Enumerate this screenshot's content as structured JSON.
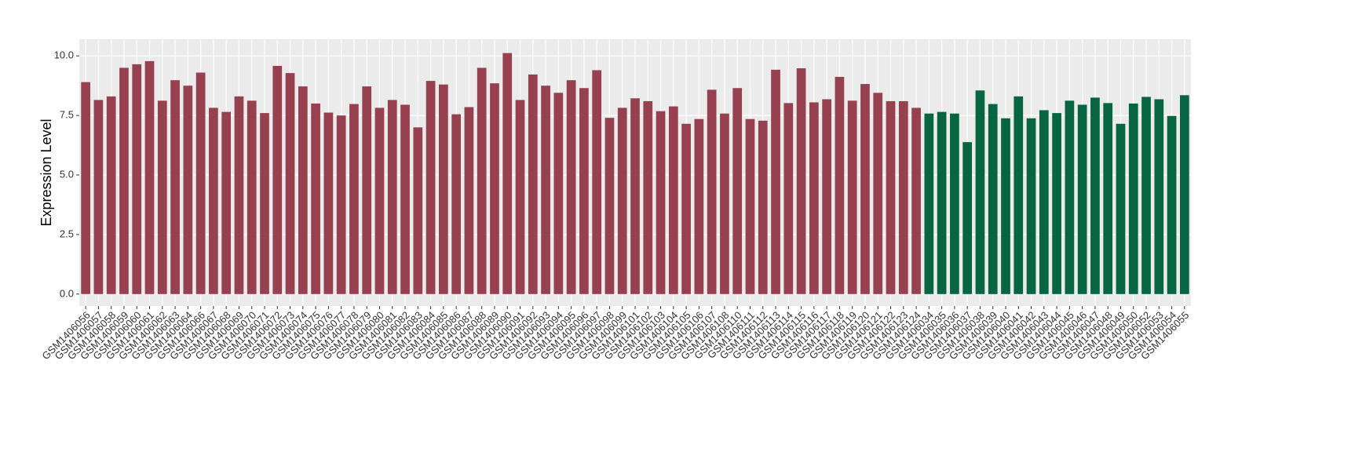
{
  "chart_data": {
    "type": "bar",
    "y_label": "Expression Level",
    "categories": [
      "GSM1406056",
      "GSM1406057",
      "GSM1406058",
      "GSM1406059",
      "GSM1406060",
      "GSM1406061",
      "GSM1406062",
      "GSM1406063",
      "GSM1406064",
      "GSM1406066",
      "GSM1406067",
      "GSM1406068",
      "GSM1406069",
      "GSM1406070",
      "GSM1406071",
      "GSM1406072",
      "GSM1406073",
      "GSM1406074",
      "GSM1406075",
      "GSM1406076",
      "GSM1406077",
      "GSM1406078",
      "GSM1406079",
      "GSM1406080",
      "GSM1406081",
      "GSM1406082",
      "GSM1406083",
      "GSM1406084",
      "GSM1406085",
      "GSM1406086",
      "GSM1406087",
      "GSM1406088",
      "GSM1406089",
      "GSM1406090",
      "GSM1406091",
      "GSM1406092",
      "GSM1406093",
      "GSM1406094",
      "GSM1406095",
      "GSM1406096",
      "GSM1406097",
      "GSM1406098",
      "GSM1406099",
      "GSM1406101",
      "GSM1406102",
      "GSM1406103",
      "GSM1406104",
      "GSM1406105",
      "GSM1406106",
      "GSM1406107",
      "GSM1406108",
      "GSM1406110",
      "GSM1406111",
      "GSM1406112",
      "GSM1406113",
      "GSM1406114",
      "GSM1406115",
      "GSM1406116",
      "GSM1406117",
      "GSM1406118",
      "GSM1406119",
      "GSM1406120",
      "GSM1406121",
      "GSM1406122",
      "GSM1406123",
      "GSM1406124",
      "GSM1406034",
      "GSM1406035",
      "GSM1406036",
      "GSM1406037",
      "GSM1406038",
      "GSM1406039",
      "GSM1406040",
      "GSM1406041",
      "GSM1406042",
      "GSM1406043",
      "GSM1406044",
      "GSM1406045",
      "GSM1406046",
      "GSM1406047",
      "GSM1406048",
      "GSM1406049",
      "GSM1406050",
      "GSM1406052",
      "GSM1406053",
      "GSM1406054",
      "GSM1406055"
    ],
    "values": [
      8.9,
      8.15,
      8.3,
      9.5,
      9.65,
      9.78,
      8.12,
      8.98,
      8.75,
      9.3,
      7.82,
      7.65,
      8.3,
      8.12,
      7.6,
      9.58,
      9.28,
      8.72,
      8.0,
      7.62,
      7.5,
      7.98,
      8.72,
      7.82,
      8.15,
      7.95,
      7.0,
      8.95,
      8.8,
      7.55,
      7.85,
      9.5,
      8.85,
      10.12,
      8.15,
      9.22,
      8.75,
      8.45,
      8.98,
      8.65,
      9.4,
      7.4,
      7.82,
      8.22,
      8.1,
      7.68,
      7.88,
      7.15,
      7.35,
      8.58,
      7.58,
      8.65,
      7.35,
      7.28,
      9.42,
      8.02,
      9.48,
      8.05,
      8.18,
      9.12,
      8.12,
      8.82,
      8.45,
      8.1,
      8.1,
      7.82,
      7.58,
      7.65,
      7.58,
      6.38,
      8.55,
      7.98,
      7.38,
      8.3,
      7.38,
      7.72,
      7.6,
      8.12,
      7.95,
      8.25,
      8.02,
      7.15,
      8.0,
      8.28,
      8.18,
      7.48,
      8.35
    ],
    "colors": [
      "#97404f",
      "#97404f",
      "#97404f",
      "#97404f",
      "#97404f",
      "#97404f",
      "#97404f",
      "#97404f",
      "#97404f",
      "#97404f",
      "#97404f",
      "#97404f",
      "#97404f",
      "#97404f",
      "#97404f",
      "#97404f",
      "#97404f",
      "#97404f",
      "#97404f",
      "#97404f",
      "#97404f",
      "#97404f",
      "#97404f",
      "#97404f",
      "#97404f",
      "#97404f",
      "#97404f",
      "#97404f",
      "#97404f",
      "#97404f",
      "#97404f",
      "#97404f",
      "#97404f",
      "#97404f",
      "#97404f",
      "#97404f",
      "#97404f",
      "#97404f",
      "#97404f",
      "#97404f",
      "#97404f",
      "#97404f",
      "#97404f",
      "#97404f",
      "#97404f",
      "#97404f",
      "#97404f",
      "#97404f",
      "#97404f",
      "#97404f",
      "#97404f",
      "#97404f",
      "#97404f",
      "#97404f",
      "#97404f",
      "#97404f",
      "#97404f",
      "#97404f",
      "#97404f",
      "#97404f",
      "#97404f",
      "#97404f",
      "#97404f",
      "#97404f",
      "#97404f",
      "#97404f",
      "#076543",
      "#076543",
      "#076543",
      "#076543",
      "#076543",
      "#076543",
      "#076543",
      "#076543",
      "#076543",
      "#076543",
      "#076543",
      "#076543",
      "#076543",
      "#076543",
      "#076543",
      "#076543",
      "#076543",
      "#076543",
      "#076543",
      "#076543",
      "#076543"
    ],
    "ylim": [
      -0.5,
      10.7
    ],
    "yticks": [
      {
        "value": 0,
        "label": "0.0"
      },
      {
        "value": 2.5,
        "label": "2.5"
      },
      {
        "value": 5,
        "label": "5.0"
      },
      {
        "value": 7.5,
        "label": "7.5"
      },
      {
        "value": 10,
        "label": "10.0"
      }
    ],
    "grid": true
  }
}
